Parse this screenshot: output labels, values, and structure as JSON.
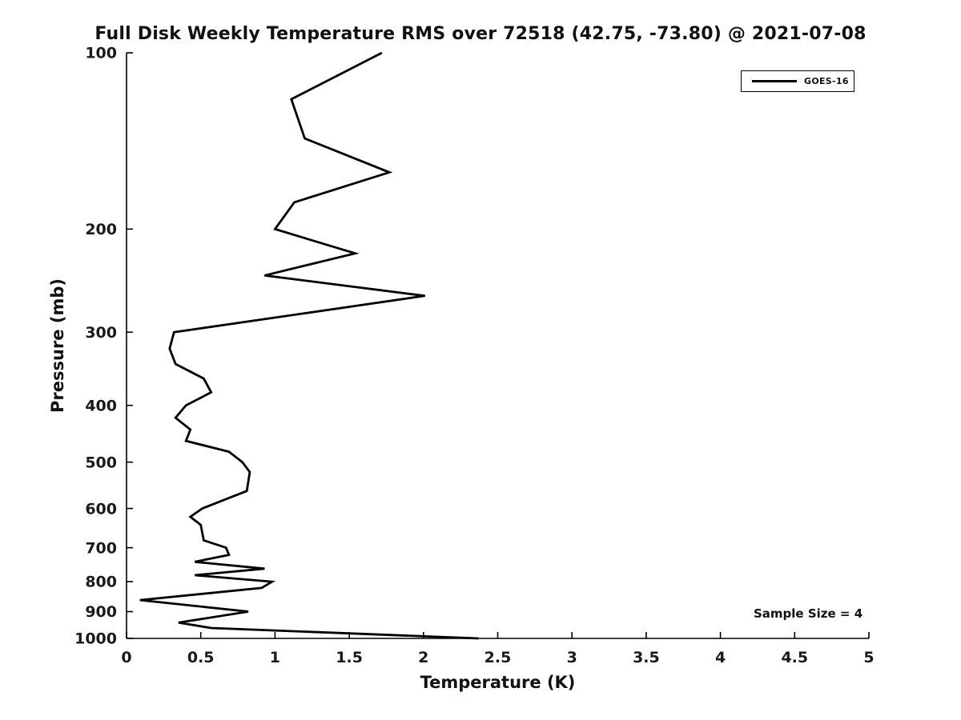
{
  "title": "Full Disk Weekly Temperature RMS over 72518 (42.75, -73.80) @ 2021-07-08",
  "annotation": {
    "sample_size_text": "Sample Size = 4"
  },
  "legend": {
    "entries": [
      {
        "label": "GOES-16",
        "color": "#000000",
        "style": "solid-line"
      }
    ],
    "position": "upper-right"
  },
  "chart_data": {
    "type": "line",
    "title": "Full Disk Weekly Temperature RMS over 72518 (42.75, -73.80) @ 2021-07-08",
    "xlabel": "Temperature (K)",
    "ylabel": "Pressure (mb)",
    "xlim": [
      0,
      5
    ],
    "xticks": [
      0,
      0.5,
      1,
      1.5,
      2,
      2.5,
      3,
      3.5,
      4,
      4.5,
      5
    ],
    "ylim": [
      100,
      1000
    ],
    "yticks": [
      100,
      200,
      300,
      400,
      500,
      600,
      700,
      800,
      900,
      1000
    ],
    "yscale": "log",
    "y_axis_inverted_pressure": true,
    "grid": false,
    "line_color": "#000000",
    "line_width": 2.8,
    "annotation": "Sample Size = 4",
    "legend_position": "upper right",
    "point_format": [
      "temperature_K",
      "pressure_mb"
    ],
    "series": [
      {
        "name": "GOES-16",
        "color": "#000000",
        "points": [
          [
            1.72,
            100
          ],
          [
            1.11,
            120
          ],
          [
            1.2,
            140
          ],
          [
            1.77,
            160
          ],
          [
            1.13,
            180
          ],
          [
            1.0,
            200
          ],
          [
            1.54,
            220
          ],
          [
            0.93,
            240
          ],
          [
            2.01,
            260
          ],
          [
            0.32,
            300
          ],
          [
            0.29,
            320
          ],
          [
            0.33,
            340
          ],
          [
            0.52,
            360
          ],
          [
            0.57,
            380
          ],
          [
            0.4,
            400
          ],
          [
            0.33,
            420
          ],
          [
            0.43,
            440
          ],
          [
            0.4,
            460
          ],
          [
            0.69,
            480
          ],
          [
            0.78,
            500
          ],
          [
            0.83,
            520
          ],
          [
            0.81,
            560
          ],
          [
            0.51,
            600
          ],
          [
            0.43,
            620
          ],
          [
            0.5,
            640
          ],
          [
            0.52,
            680
          ],
          [
            0.67,
            700
          ],
          [
            0.69,
            720
          ],
          [
            0.46,
            740
          ],
          [
            0.93,
            760
          ],
          [
            0.46,
            780
          ],
          [
            0.98,
            800
          ],
          [
            0.91,
            820
          ],
          [
            0.09,
            860
          ],
          [
            0.82,
            900
          ],
          [
            0.35,
            940
          ],
          [
            0.57,
            960
          ],
          [
            2.37,
            1000
          ]
        ]
      }
    ]
  }
}
